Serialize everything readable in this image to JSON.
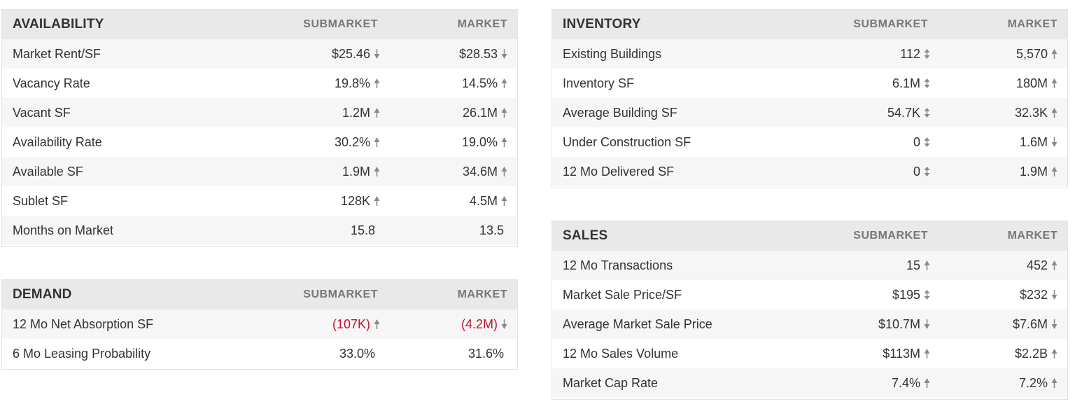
{
  "availability": {
    "title": "AVAILABILITY",
    "col_submarket": "SUBMARKET",
    "col_market": "MARKET",
    "rows": [
      {
        "label": "Market Rent/SF",
        "sub": "$25.46",
        "sub_arrow": "down",
        "mkt": "$28.53",
        "mkt_arrow": "down"
      },
      {
        "label": "Vacancy Rate",
        "sub": "19.8%",
        "sub_arrow": "up",
        "mkt": "14.5%",
        "mkt_arrow": "up"
      },
      {
        "label": "Vacant SF",
        "sub": "1.2M",
        "sub_arrow": "up",
        "mkt": "26.1M",
        "mkt_arrow": "up"
      },
      {
        "label": "Availability Rate",
        "sub": "30.2%",
        "sub_arrow": "up",
        "mkt": "19.0%",
        "mkt_arrow": "up"
      },
      {
        "label": "Available SF",
        "sub": "1.9M",
        "sub_arrow": "up",
        "mkt": "34.6M",
        "mkt_arrow": "up"
      },
      {
        "label": "Sublet SF",
        "sub": "128K",
        "sub_arrow": "up",
        "mkt": "4.5M",
        "mkt_arrow": "up"
      },
      {
        "label": "Months on Market",
        "sub": "15.8",
        "sub_arrow": "none",
        "mkt": "13.5",
        "mkt_arrow": "none"
      }
    ]
  },
  "demand": {
    "title": "DEMAND",
    "col_submarket": "SUBMARKET",
    "col_market": "MARKET",
    "rows": [
      {
        "label": "12 Mo Net Absorption SF",
        "sub": "(107K)",
        "sub_arrow": "up",
        "mkt": "(4.2M)",
        "mkt_arrow": "down",
        "negative": true
      },
      {
        "label": "6 Mo Leasing Probability",
        "sub": "33.0%",
        "sub_arrow": "none",
        "mkt": "31.6%",
        "mkt_arrow": "none"
      }
    ]
  },
  "inventory": {
    "title": "INVENTORY",
    "col_submarket": "SUBMARKET",
    "col_market": "MARKET",
    "rows": [
      {
        "label": "Existing Buildings",
        "sub": "112",
        "sub_arrow": "flat",
        "mkt": "5,570",
        "mkt_arrow": "up"
      },
      {
        "label": "Inventory SF",
        "sub": "6.1M",
        "sub_arrow": "flat",
        "mkt": "180M",
        "mkt_arrow": "up"
      },
      {
        "label": "Average Building SF",
        "sub": "54.7K",
        "sub_arrow": "flat",
        "mkt": "32.3K",
        "mkt_arrow": "up"
      },
      {
        "label": "Under Construction SF",
        "sub": "0",
        "sub_arrow": "flat",
        "mkt": "1.6M",
        "mkt_arrow": "down"
      },
      {
        "label": "12 Mo Delivered SF",
        "sub": "0",
        "sub_arrow": "flat",
        "mkt": "1.9M",
        "mkt_arrow": "up"
      }
    ]
  },
  "sales": {
    "title": "SALES",
    "col_submarket": "SUBMARKET",
    "col_market": "MARKET",
    "rows": [
      {
        "label": "12 Mo Transactions",
        "sub": "15",
        "sub_arrow": "up",
        "mkt": "452",
        "mkt_arrow": "up"
      },
      {
        "label": "Market Sale Price/SF",
        "sub": "$195",
        "sub_arrow": "flat",
        "mkt": "$232",
        "mkt_arrow": "down"
      },
      {
        "label": "Average Market Sale Price",
        "sub": "$10.7M",
        "sub_arrow": "down",
        "mkt": "$7.6M",
        "mkt_arrow": "down"
      },
      {
        "label": "12 Mo Sales Volume",
        "sub": "$113M",
        "sub_arrow": "up",
        "mkt": "$2.2B",
        "mkt_arrow": "up"
      },
      {
        "label": "Market Cap Rate",
        "sub": "7.4%",
        "sub_arrow": "up",
        "mkt": "7.2%",
        "mkt_arrow": "up"
      }
    ]
  },
  "colors": {
    "header_bg": "#e9e9e9",
    "shade_bg": "#f6f6f6",
    "text": "#333333",
    "muted": "#777777",
    "negative": "#c0122c",
    "arrow": "#8a8a8a"
  }
}
